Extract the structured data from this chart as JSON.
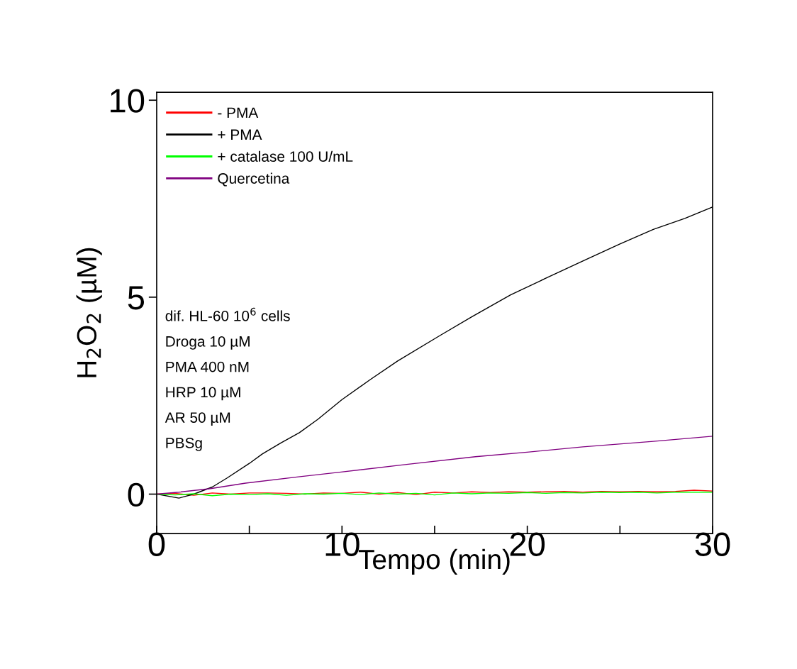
{
  "chart_data": {
    "type": "line",
    "xlabel": "Tempo (min)",
    "ylabel": "H$_{2}$O$_{2}$ (µM)",
    "xlim": [
      0,
      30
    ],
    "ylim": [
      -1,
      10.2
    ],
    "xticks": [
      0,
      {
        "value": 5,
        "label": null
      },
      10,
      {
        "value": 15,
        "label": null
      },
      20,
      {
        "value": 25,
        "label": null
      },
      30
    ],
    "yticks": [
      0,
      5,
      10
    ],
    "grid": false,
    "legend": "top left",
    "marker": "none",
    "line_style": "solid",
    "annotations": [
      "dif. HL-60 10$^{6}$ cells",
      "Droga 10 µM",
      "PMA 400 nM",
      "HRP 10 µM",
      "AR 50 µM",
      "PBSg"
    ],
    "series": [
      {
        "name": "- PMA",
        "color": "#ff0000",
        "x": [
          0,
          1,
          2,
          3,
          4,
          5,
          6,
          7,
          8,
          9,
          10,
          11,
          12,
          13,
          14,
          15,
          16,
          17,
          18,
          19,
          20,
          21,
          22,
          23,
          24,
          25,
          26,
          27,
          28,
          29,
          30
        ],
        "values": [
          0,
          0.02,
          -0.03,
          0.03,
          0.0,
          0.03,
          0.03,
          0.02,
          0.0,
          0.03,
          0.02,
          0.05,
          0.0,
          0.04,
          -0.01,
          0.05,
          0.03,
          0.06,
          0.04,
          0.06,
          0.05,
          0.06,
          0.07,
          0.05,
          0.07,
          0.06,
          0.07,
          0.06,
          0.07,
          0.1,
          0.08
        ]
      },
      {
        "name": "+ PMA",
        "color": "#000000",
        "x": [
          0,
          1.2,
          2,
          3,
          3.8,
          5,
          5.7,
          6.7,
          7.7,
          8.7,
          10,
          11.5,
          13,
          15.3,
          17,
          19.1,
          21,
          23,
          25,
          26.8,
          28.5,
          30
        ],
        "values": [
          0,
          -0.1,
          0.0,
          0.18,
          0.41,
          0.78,
          1.02,
          1.3,
          1.56,
          1.9,
          2.4,
          2.9,
          3.38,
          4.03,
          4.5,
          5.06,
          5.48,
          5.92,
          6.35,
          6.72,
          7.0,
          7.29
        ]
      },
      {
        "name": "+ catalase 100 U/mL",
        "color": "#00ff00",
        "x": [
          0,
          1,
          2,
          3,
          4,
          5,
          6,
          7,
          8,
          9,
          10,
          11,
          12,
          13,
          14,
          15,
          16,
          17,
          18,
          19,
          20,
          21,
          22,
          23,
          24,
          25,
          26,
          27,
          28,
          29,
          30
        ],
        "values": [
          0,
          -0.02,
          0.01,
          -0.04,
          0.0,
          -0.01,
          0.01,
          -0.03,
          0.01,
          0.0,
          0.02,
          -0.01,
          0.03,
          0.0,
          0.02,
          -0.02,
          0.03,
          0.01,
          0.03,
          0.02,
          0.04,
          0.02,
          0.04,
          0.03,
          0.05,
          0.04,
          0.05,
          0.03,
          0.05,
          0.05,
          0.05
        ]
      },
      {
        "name": "Quercetina",
        "color": "#800080",
        "x": [
          0,
          1.2,
          2.9,
          4.8,
          7.65,
          9.95,
          13.4,
          17.2,
          20.1,
          23,
          26.8,
          30
        ],
        "values": [
          0,
          0.05,
          0.14,
          0.28,
          0.44,
          0.56,
          0.75,
          0.95,
          1.07,
          1.2,
          1.34,
          1.47
        ]
      }
    ]
  }
}
